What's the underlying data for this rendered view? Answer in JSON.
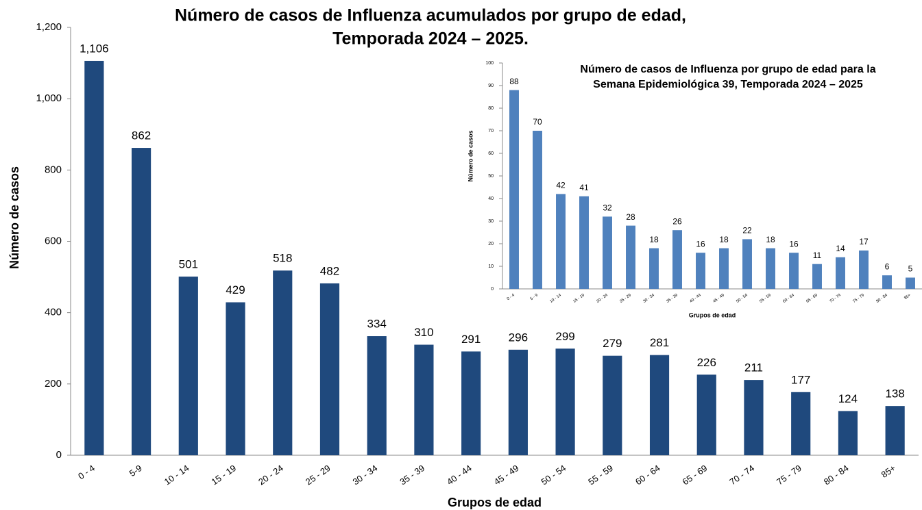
{
  "chart_data": [
    {
      "type": "bar",
      "title": [
        "Número de casos de Influenza acumulados por grupo de edad,",
        "Temporada 2024 – 2025."
      ],
      "x_label": "Grupos de edad",
      "y_label": "Número de casos",
      "categories": [
        "0 - 4",
        "5-9",
        "10 - 14",
        "15 - 19",
        "20 - 24",
        "25 - 29",
        "30 - 34",
        "35 - 39",
        "40 - 44",
        "45 - 49",
        "50 - 54",
        "55 - 59",
        "60 - 64",
        "65 - 69",
        "70 - 74",
        "75 - 79",
        "80 - 84",
        "85+"
      ],
      "values": [
        1106,
        862,
        501,
        429,
        518,
        482,
        334,
        310,
        291,
        296,
        299,
        279,
        281,
        226,
        211,
        177,
        124,
        138
      ],
      "value_labels": [
        "1,106",
        "862",
        "501",
        "429",
        "518",
        "482",
        "334",
        "310",
        "291",
        "296",
        "299",
        "279",
        "281",
        "226",
        "211",
        "177",
        "124",
        "138"
      ],
      "color": "#1f497d",
      "ylim": [
        0,
        1200
      ],
      "yticks": [
        0,
        200,
        400,
        600,
        800,
        {
          "value": 1000,
          "label": "1,000"
        },
        {
          "value": 1200,
          "label": "1,200"
        }
      ]
    },
    {
      "type": "bar",
      "title": [
        "Número de casos de Influenza por grupo de edad para la",
        "Semana Epidemiológica 39, Temporada 2024 – 2025"
      ],
      "x_label": "Grupos de edad",
      "y_label": "Número de casos",
      "categories": [
        "0 - 4",
        "5 - 9",
        "10 - 14",
        "15 - 19",
        "20 - 24",
        "25 - 29",
        "30 - 34",
        "35 - 39",
        "40 - 44",
        "45 - 49",
        "50 - 54",
        "55 - 59",
        "60 - 64",
        "65 - 69",
        "70 - 74",
        "75 - 79",
        "80 - 84",
        "85+"
      ],
      "values": [
        88,
        70,
        42,
        41,
        32,
        28,
        18,
        26,
        16,
        18,
        22,
        18,
        16,
        11,
        14,
        17,
        6,
        5
      ],
      "color": "#4f81bd",
      "ylim": [
        0,
        100
      ],
      "yticks": [
        0,
        10,
        20,
        30,
        40,
        50,
        60,
        70,
        80,
        90,
        100
      ]
    }
  ]
}
